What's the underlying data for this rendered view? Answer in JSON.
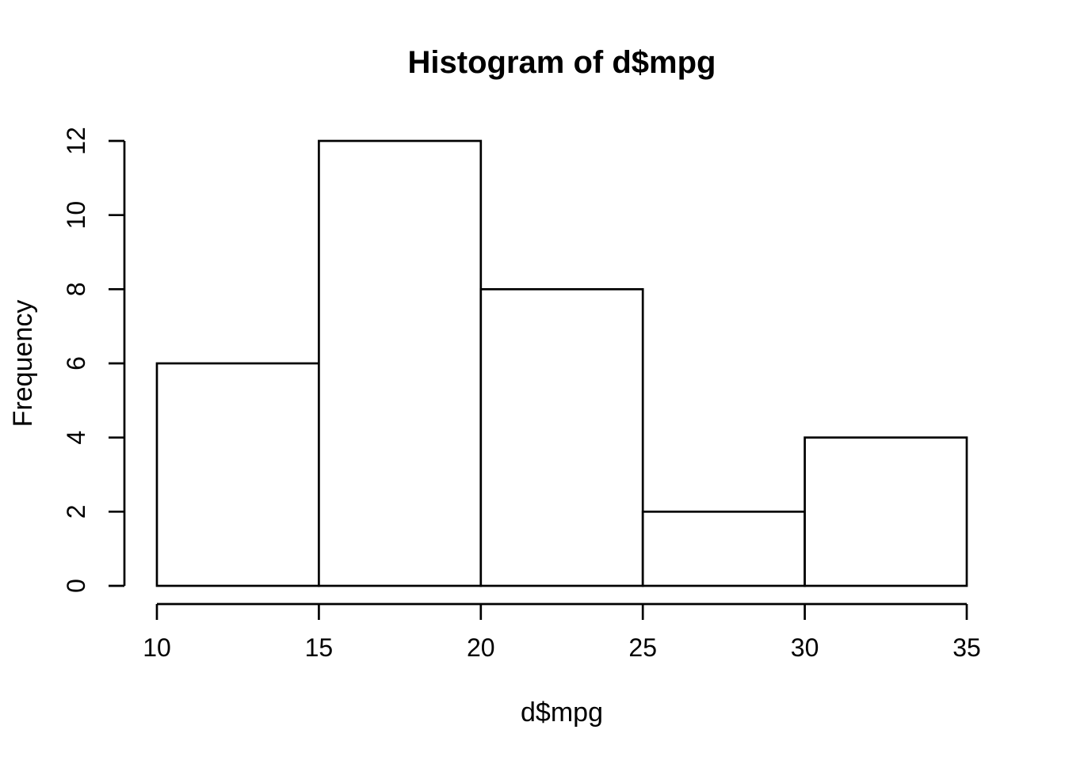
{
  "chart_data": {
    "type": "bar",
    "chart_kind": "histogram",
    "title": "Histogram of d$mpg",
    "xlabel": "d$mpg",
    "ylabel": "Frequency",
    "bin_edges": [
      10,
      15,
      20,
      25,
      30,
      35
    ],
    "counts": [
      6,
      12,
      8,
      2,
      4
    ],
    "x_ticks": [
      10,
      15,
      20,
      25,
      30,
      35
    ],
    "y_ticks": [
      0,
      2,
      4,
      6,
      8,
      10,
      12
    ],
    "xlim": [
      10,
      35
    ],
    "ylim": [
      0,
      12
    ],
    "grid": false,
    "legend": false,
    "bar_fill": "#ffffff",
    "bar_stroke": "#000000",
    "axis_color": "#000000",
    "background": "#ffffff"
  }
}
